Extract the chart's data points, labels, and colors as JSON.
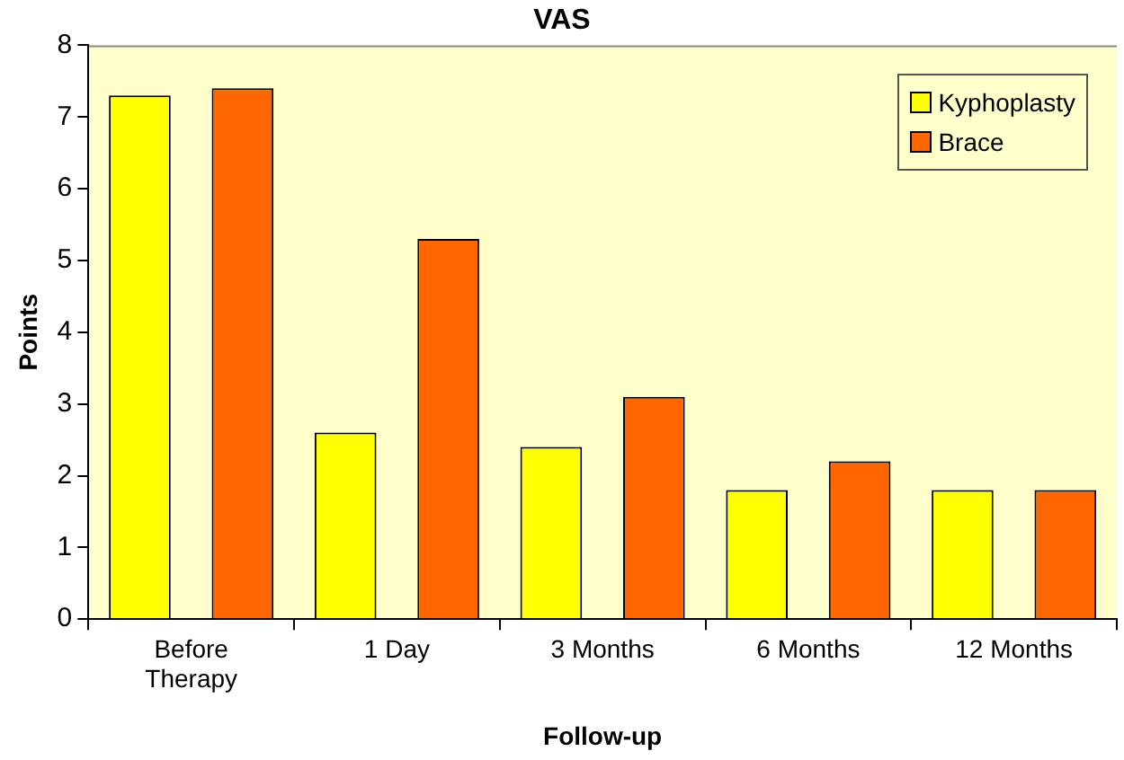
{
  "chart_data": {
    "type": "bar",
    "title": "VAS",
    "xlabel": "Follow-up",
    "ylabel": "Points",
    "categories": [
      "Before Therapy",
      "1 Day",
      "3 Months",
      "6 Months",
      "12 Months"
    ],
    "series": [
      {
        "name": "Kyphoplasty",
        "color": "#ffff00",
        "values": [
          7.3,
          2.6,
          2.4,
          1.8,
          1.8
        ]
      },
      {
        "name": "Brace",
        "color": "#ff6600",
        "values": [
          7.4,
          5.3,
          3.1,
          2.2,
          1.8
        ]
      }
    ],
    "ylim": [
      0,
      8
    ],
    "yticks": [
      0,
      1,
      2,
      3,
      4,
      5,
      6,
      7,
      8
    ],
    "grid": false,
    "legend": "top right"
  }
}
